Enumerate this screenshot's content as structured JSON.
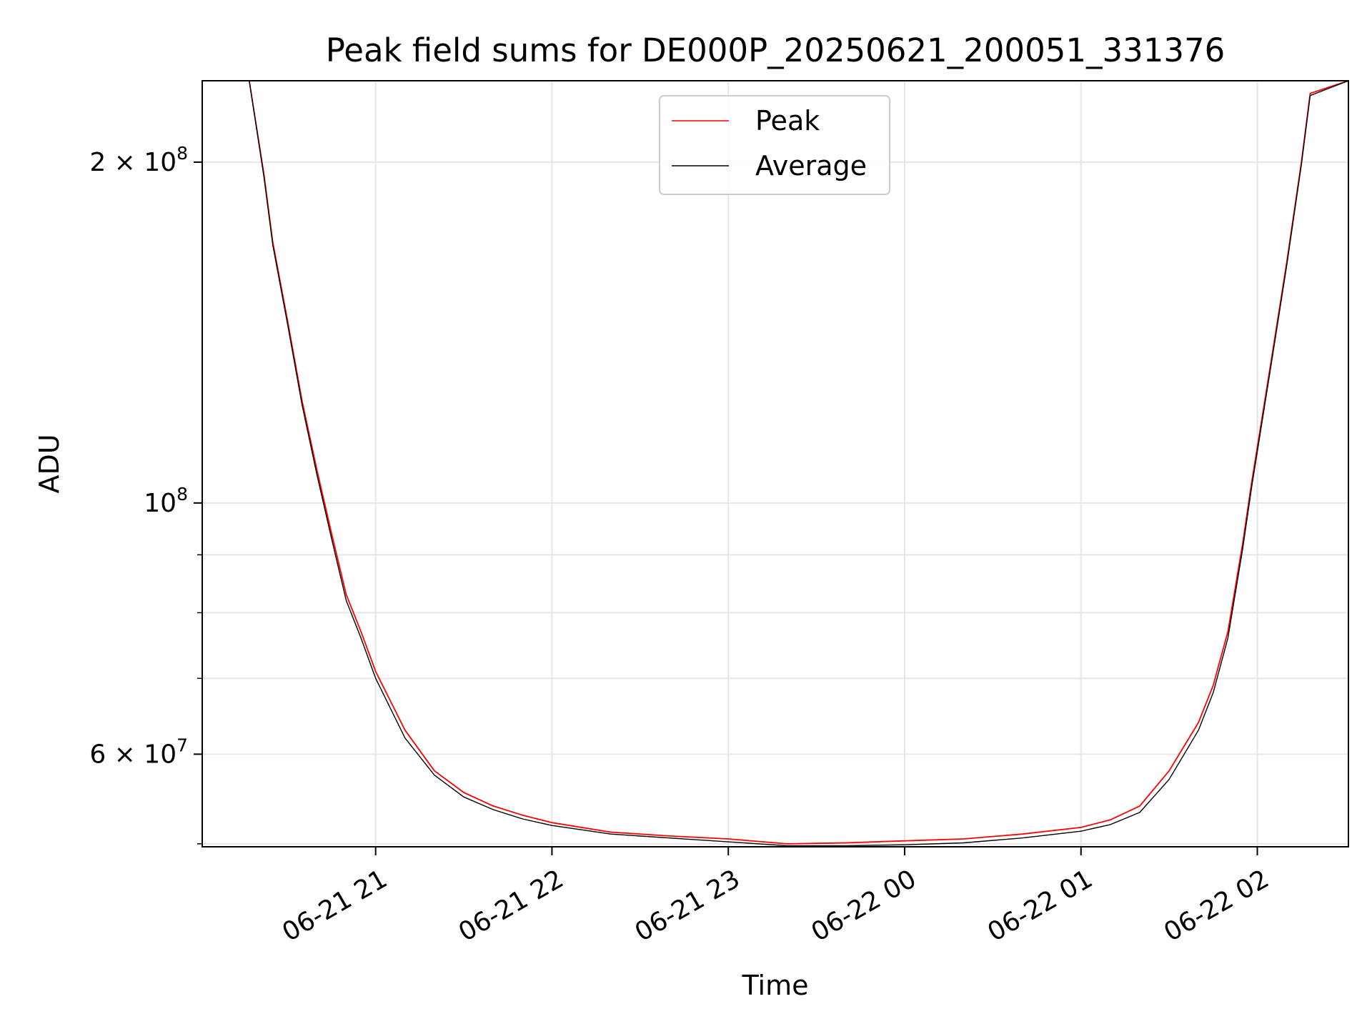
{
  "chart_data": {
    "type": "line",
    "title": "Peak field sums for DE000P_20250621_200051_331376",
    "xlabel": "Time",
    "ylabel": "ADU",
    "y_scale": "log",
    "xlim": [
      "2025-06-21 20:01",
      "2025-06-22 02:31"
    ],
    "ylim": [
      49700000,
      236000000
    ],
    "grid": true,
    "legend_placement": "upper center",
    "x_ticks": [
      {
        "value": "2025-06-21 21:00",
        "label": "06-21 21"
      },
      {
        "value": "2025-06-21 22:00",
        "label": "06-21 22"
      },
      {
        "value": "2025-06-21 23:00",
        "label": "06-21 23"
      },
      {
        "value": "2025-06-22 00:00",
        "label": "06-22 00"
      },
      {
        "value": "2025-06-22 01:00",
        "label": "06-22 01"
      },
      {
        "value": "2025-06-22 02:00",
        "label": "06-22 02"
      }
    ],
    "y_ticks": [
      {
        "value": 60000000,
        "label": "6 × 10",
        "exp": "7"
      },
      {
        "value": 100000000,
        "label": "10",
        "exp": "8"
      },
      {
        "value": 200000000,
        "label": "2 × 10",
        "exp": "8"
      }
    ],
    "y_minor_ticks": [
      50000000,
      70000000,
      80000000,
      90000000
    ],
    "series": [
      {
        "name": "Peak",
        "color": "#ff0000",
        "x": [
          "2025-06-21 20:01",
          "2025-06-21 20:10",
          "2025-06-21 20:17",
          "2025-06-21 20:22",
          "2025-06-21 20:25",
          "2025-06-21 20:30",
          "2025-06-21 20:35",
          "2025-06-21 20:40",
          "2025-06-21 20:45",
          "2025-06-21 20:50",
          "2025-06-21 20:55",
          "2025-06-21 21:00",
          "2025-06-21 21:10",
          "2025-06-21 21:20",
          "2025-06-21 21:30",
          "2025-06-21 21:40",
          "2025-06-21 21:50",
          "2025-06-21 22:00",
          "2025-06-21 22:20",
          "2025-06-21 22:40",
          "2025-06-21 23:00",
          "2025-06-21 23:20",
          "2025-06-21 23:40",
          "2025-06-22 00:00",
          "2025-06-22 00:20",
          "2025-06-22 00:40",
          "2025-06-22 01:00",
          "2025-06-22 01:10",
          "2025-06-22 01:20",
          "2025-06-22 01:30",
          "2025-06-22 01:40",
          "2025-06-22 01:45",
          "2025-06-22 01:50",
          "2025-06-22 01:55",
          "2025-06-22 01:58",
          "2025-06-22 02:05",
          "2025-06-22 02:10",
          "2025-06-22 02:15",
          "2025-06-22 02:18",
          "2025-06-22 02:31"
        ],
        "values": [
          236000000,
          236000000,
          236000000,
          195000000,
          170000000,
          145000000,
          123000000,
          107000000,
          94000000,
          83000000,
          77000000,
          71000000,
          63000000,
          58000000,
          55500000,
          54000000,
          53000000,
          52200000,
          51200000,
          50800000,
          50500000,
          50000000,
          50100000,
          50300000,
          50500000,
          51000000,
          51700000,
          52500000,
          54000000,
          58000000,
          64000000,
          69000000,
          77000000,
          92000000,
          104000000,
          135000000,
          163000000,
          200000000,
          230000000,
          236000000
        ]
      },
      {
        "name": "Average",
        "color": "#000000",
        "x": [
          "2025-06-21 20:01",
          "2025-06-21 20:10",
          "2025-06-21 20:17",
          "2025-06-21 20:22",
          "2025-06-21 20:25",
          "2025-06-21 20:30",
          "2025-06-21 20:35",
          "2025-06-21 20:40",
          "2025-06-21 20:45",
          "2025-06-21 20:50",
          "2025-06-21 20:55",
          "2025-06-21 21:00",
          "2025-06-21 21:10",
          "2025-06-21 21:20",
          "2025-06-21 21:30",
          "2025-06-21 21:40",
          "2025-06-21 21:50",
          "2025-06-21 22:00",
          "2025-06-21 22:20",
          "2025-06-21 22:40",
          "2025-06-21 23:00",
          "2025-06-21 23:20",
          "2025-06-21 23:40",
          "2025-06-22 00:00",
          "2025-06-22 00:20",
          "2025-06-22 00:40",
          "2025-06-22 01:00",
          "2025-06-22 01:10",
          "2025-06-22 01:20",
          "2025-06-22 01:30",
          "2025-06-22 01:40",
          "2025-06-22 01:45",
          "2025-06-22 01:50",
          "2025-06-22 01:55",
          "2025-06-22 01:58",
          "2025-06-22 02:05",
          "2025-06-22 02:10",
          "2025-06-22 02:15",
          "2025-06-22 02:18",
          "2025-06-22 02:31"
        ],
        "values": [
          236000000,
          236000000,
          236000000,
          194000000,
          169000000,
          144000000,
          122000000,
          106000000,
          93000000,
          82000000,
          76000000,
          70000000,
          62000000,
          57500000,
          55000000,
          53600000,
          52600000,
          51900000,
          51000000,
          50600000,
          50200000,
          49800000,
          49800000,
          49900000,
          50100000,
          50600000,
          51300000,
          52000000,
          53300000,
          57000000,
          63000000,
          68000000,
          76000000,
          91000000,
          103000000,
          134000000,
          162000000,
          199000000,
          229000000,
          236000000
        ]
      }
    ]
  }
}
